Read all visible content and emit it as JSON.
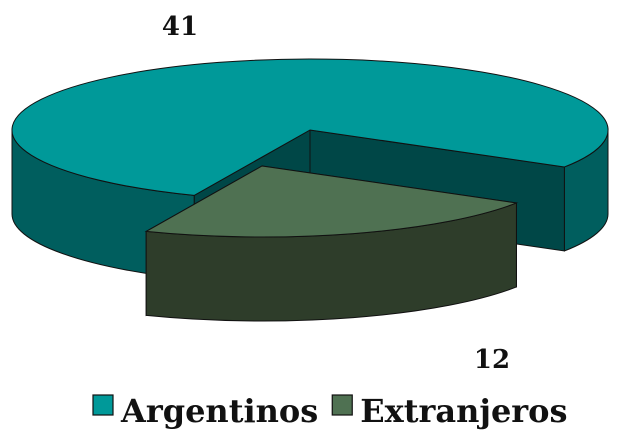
{
  "chart_data": {
    "type": "pie",
    "style": "3d-exploded",
    "categories": [
      "Argentinos",
      "Extranjeros"
    ],
    "values": [
      41,
      12
    ],
    "data_labels": [
      "41",
      "12"
    ],
    "title": "",
    "legend": {
      "position": "bottom",
      "entries": [
        "Argentinos",
        "Extranjeros"
      ]
    },
    "colors": {
      "Argentinos": {
        "top": "#009999",
        "side": "#005E5E",
        "wall": "#004747"
      },
      "Extranjeros": {
        "top": "#4F7152",
        "side": "#2E3D2A",
        "wall": "#263322"
      }
    }
  }
}
